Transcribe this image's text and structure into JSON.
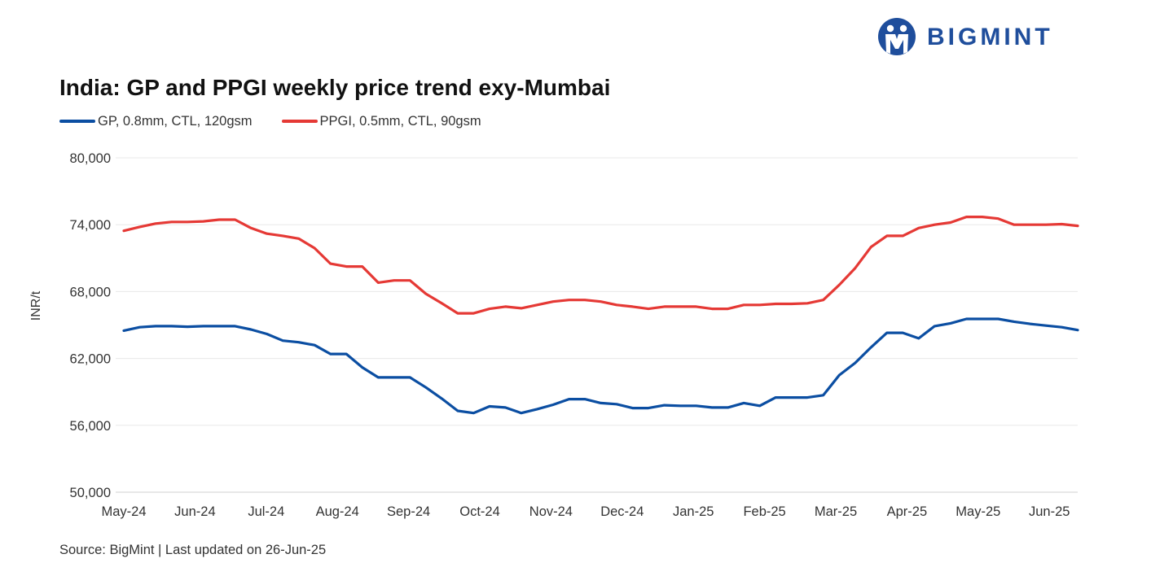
{
  "brand": {
    "name": "BIGMINT",
    "color": "#1f4e9c"
  },
  "chart_data": {
    "type": "line",
    "title": "India: GP and PPGI weekly price trend exy-Mumbai",
    "ylabel": "INR/t",
    "xlabel": "",
    "ylim": [
      50000,
      80000
    ],
    "y_ticks": [
      50000,
      56000,
      62000,
      68000,
      74000,
      80000
    ],
    "y_tick_labels": [
      "50,000",
      "56,000",
      "62,000",
      "68,000",
      "74,000",
      "80,000"
    ],
    "x_tick_labels": [
      "May-24",
      "Jun-24",
      "Jul-24",
      "Aug-24",
      "Sep-24",
      "Oct-24",
      "Nov-24",
      "Dec-24",
      "Jan-25",
      "Feb-25",
      "Mar-25",
      "Apr-25",
      "May-25",
      "Jun-25"
    ],
    "grid": true,
    "legend_position": "top-left",
    "series": [
      {
        "name": "GP, 0.8mm, CTL, 120gsm",
        "color": "#0b4ea2",
        "values": [
          64500,
          64800,
          64900,
          64900,
          64850,
          64900,
          64900,
          64900,
          64600,
          64200,
          63600,
          63450,
          63200,
          62400,
          62400,
          61200,
          60300,
          60300,
          60300,
          59400,
          58400,
          57300,
          57100,
          57700,
          57600,
          57100,
          57450,
          57850,
          58350,
          58350,
          58000,
          57900,
          57550,
          57550,
          57800,
          57750,
          57750,
          57600,
          57600,
          58000,
          57750,
          58500,
          58500,
          58500,
          58700,
          60500,
          61600,
          63000,
          64300,
          64300,
          63800,
          64900,
          65150,
          65550,
          65550,
          65550,
          65300,
          65100,
          64950,
          64800,
          64550
        ]
      },
      {
        "name": "PPGI, 0.5mm, CTL, 90gsm",
        "color": "#e53935",
        "values": [
          73450,
          73800,
          74100,
          74250,
          74250,
          74300,
          74450,
          74450,
          73700,
          73200,
          73000,
          72750,
          71900,
          70500,
          70250,
          70250,
          68800,
          69000,
          69000,
          67800,
          66950,
          66050,
          66050,
          66450,
          66650,
          66500,
          66800,
          67100,
          67250,
          67250,
          67100,
          66800,
          66650,
          66450,
          66650,
          66650,
          66650,
          66450,
          66450,
          66800,
          66800,
          66900,
          66900,
          66950,
          67250,
          68600,
          70100,
          72000,
          73000,
          73000,
          73700,
          74000,
          74200,
          74700,
          74700,
          74550,
          74000,
          74000,
          74000,
          74050,
          73900
        ]
      }
    ]
  },
  "footer": {
    "source": "Source: BigMint | Last updated on 26-Jun-25"
  }
}
